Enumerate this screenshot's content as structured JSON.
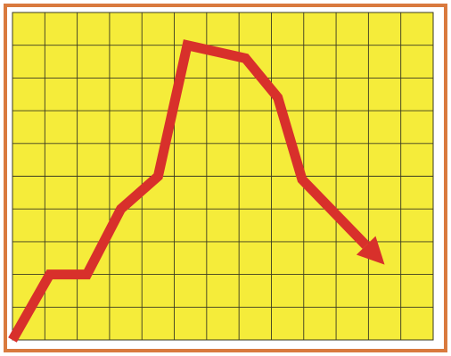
{
  "colors": {
    "frame": "#d97a3e",
    "panel_bg": "#f5ec3a",
    "grid": "#3a3a22",
    "line": "#d8302b"
  },
  "chart_data": {
    "type": "line",
    "title": "",
    "xlabel": "",
    "ylabel": "",
    "grid": true,
    "grid_columns": 13,
    "grid_rows": 10,
    "xlim": [
      0,
      13
    ],
    "ylim": [
      0,
      10
    ],
    "end_marker": "arrow",
    "series": [
      {
        "x": [
          0,
          1.15,
          2.3,
          3.35,
          4.5,
          5.4,
          7.2,
          8.2,
          8.95,
          11.5
        ],
        "y": [
          0,
          2,
          2,
          4,
          5,
          9,
          8.6,
          7.4,
          4.9,
          2.3
        ]
      }
    ]
  }
}
